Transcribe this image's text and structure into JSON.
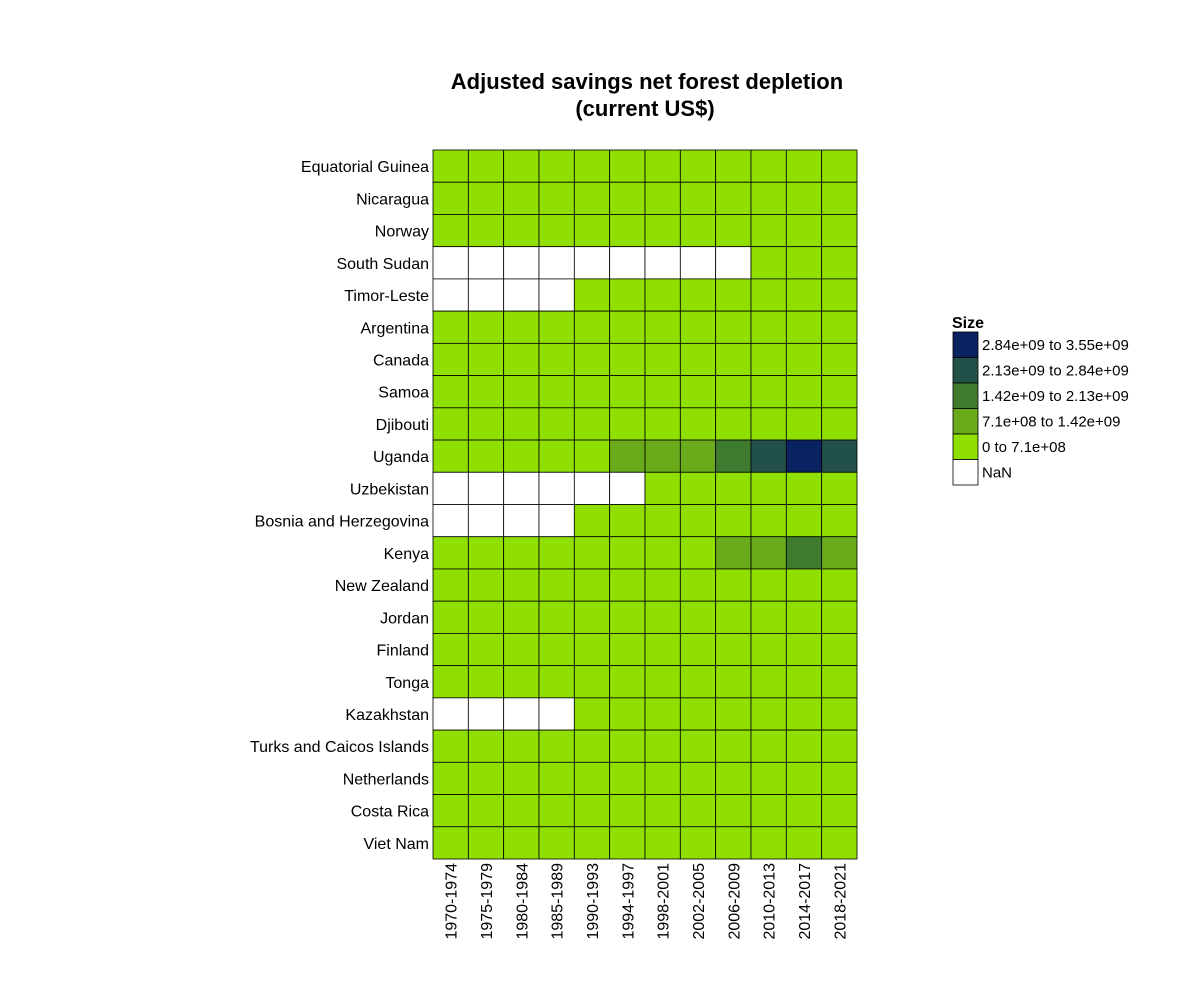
{
  "chart_data": {
    "type": "heatmap",
    "title": [
      "Adjusted savings net forest depletion",
      "(current US$)"
    ],
    "rows": [
      "Equatorial Guinea",
      "Nicaragua",
      "Norway",
      "South Sudan",
      "Timor-Leste",
      "Argentina",
      "Canada",
      "Samoa",
      "Djibouti",
      "Uganda",
      "Uzbekistan",
      "Bosnia and Herzegovina",
      "Kenya",
      "New Zealand",
      "Jordan",
      "Finland",
      "Tonga",
      "Kazakhstan",
      "Turks and Caicos Islands",
      "Netherlands",
      "Costa Rica",
      "Viet Nam"
    ],
    "columns": [
      "1970-1974",
      "1975-1979",
      "1980-1984",
      "1985-1989",
      "1990-1993",
      "1994-1997",
      "1998-2001",
      "2002-2005",
      "2006-2009",
      "2010-2013",
      "2014-2017",
      "2018-2021"
    ],
    "bins": [
      {
        "label": "2.84e+09 to 3.55e+09",
        "color": "#0b2262"
      },
      {
        "label": "2.13e+09 to 2.84e+09",
        "color": "#22514a"
      },
      {
        "label": "1.42e+09 to 2.13e+09",
        "color": "#3f7b2e"
      },
      {
        "label": "7.1e+08 to 1.42e+09",
        "color": "#6aab1c"
      },
      {
        "label": "0 to 7.1e+08",
        "color": "#8fe000"
      },
      {
        "label": "NaN",
        "color": "#ffffff"
      }
    ],
    "cell_bins_note": "values are bin indices into bins[] (0 = highest, 4 = lowest, 5 = NaN)",
    "cells": [
      [
        4,
        4,
        4,
        4,
        4,
        4,
        4,
        4,
        4,
        4,
        4,
        4
      ],
      [
        4,
        4,
        4,
        4,
        4,
        4,
        4,
        4,
        4,
        4,
        4,
        4
      ],
      [
        4,
        4,
        4,
        4,
        4,
        4,
        4,
        4,
        4,
        4,
        4,
        4
      ],
      [
        5,
        5,
        5,
        5,
        5,
        5,
        5,
        5,
        5,
        4,
        4,
        4
      ],
      [
        5,
        5,
        5,
        5,
        4,
        4,
        4,
        4,
        4,
        4,
        4,
        4
      ],
      [
        4,
        4,
        4,
        4,
        4,
        4,
        4,
        4,
        4,
        4,
        4,
        4
      ],
      [
        4,
        4,
        4,
        4,
        4,
        4,
        4,
        4,
        4,
        4,
        4,
        4
      ],
      [
        4,
        4,
        4,
        4,
        4,
        4,
        4,
        4,
        4,
        4,
        4,
        4
      ],
      [
        4,
        4,
        4,
        4,
        4,
        4,
        4,
        4,
        4,
        4,
        4,
        4
      ],
      [
        4,
        4,
        4,
        4,
        4,
        3,
        3,
        3,
        2,
        1,
        0,
        1
      ],
      [
        5,
        5,
        5,
        5,
        5,
        5,
        4,
        4,
        4,
        4,
        4,
        4
      ],
      [
        5,
        5,
        5,
        5,
        4,
        4,
        4,
        4,
        4,
        4,
        4,
        4
      ],
      [
        4,
        4,
        4,
        4,
        4,
        4,
        4,
        4,
        3,
        3,
        2,
        3
      ],
      [
        4,
        4,
        4,
        4,
        4,
        4,
        4,
        4,
        4,
        4,
        4,
        4
      ],
      [
        4,
        4,
        4,
        4,
        4,
        4,
        4,
        4,
        4,
        4,
        4,
        4
      ],
      [
        4,
        4,
        4,
        4,
        4,
        4,
        4,
        4,
        4,
        4,
        4,
        4
      ],
      [
        4,
        4,
        4,
        4,
        4,
        4,
        4,
        4,
        4,
        4,
        4,
        4
      ],
      [
        5,
        5,
        5,
        5,
        4,
        4,
        4,
        4,
        4,
        4,
        4,
        4
      ],
      [
        4,
        4,
        4,
        4,
        4,
        4,
        4,
        4,
        4,
        4,
        4,
        4
      ],
      [
        4,
        4,
        4,
        4,
        4,
        4,
        4,
        4,
        4,
        4,
        4,
        4
      ],
      [
        4,
        4,
        4,
        4,
        4,
        4,
        4,
        4,
        4,
        4,
        4,
        4
      ],
      [
        4,
        4,
        4,
        4,
        4,
        4,
        4,
        4,
        4,
        4,
        4,
        4
      ]
    ],
    "legend": {
      "title": "Size",
      "position": "right"
    }
  }
}
